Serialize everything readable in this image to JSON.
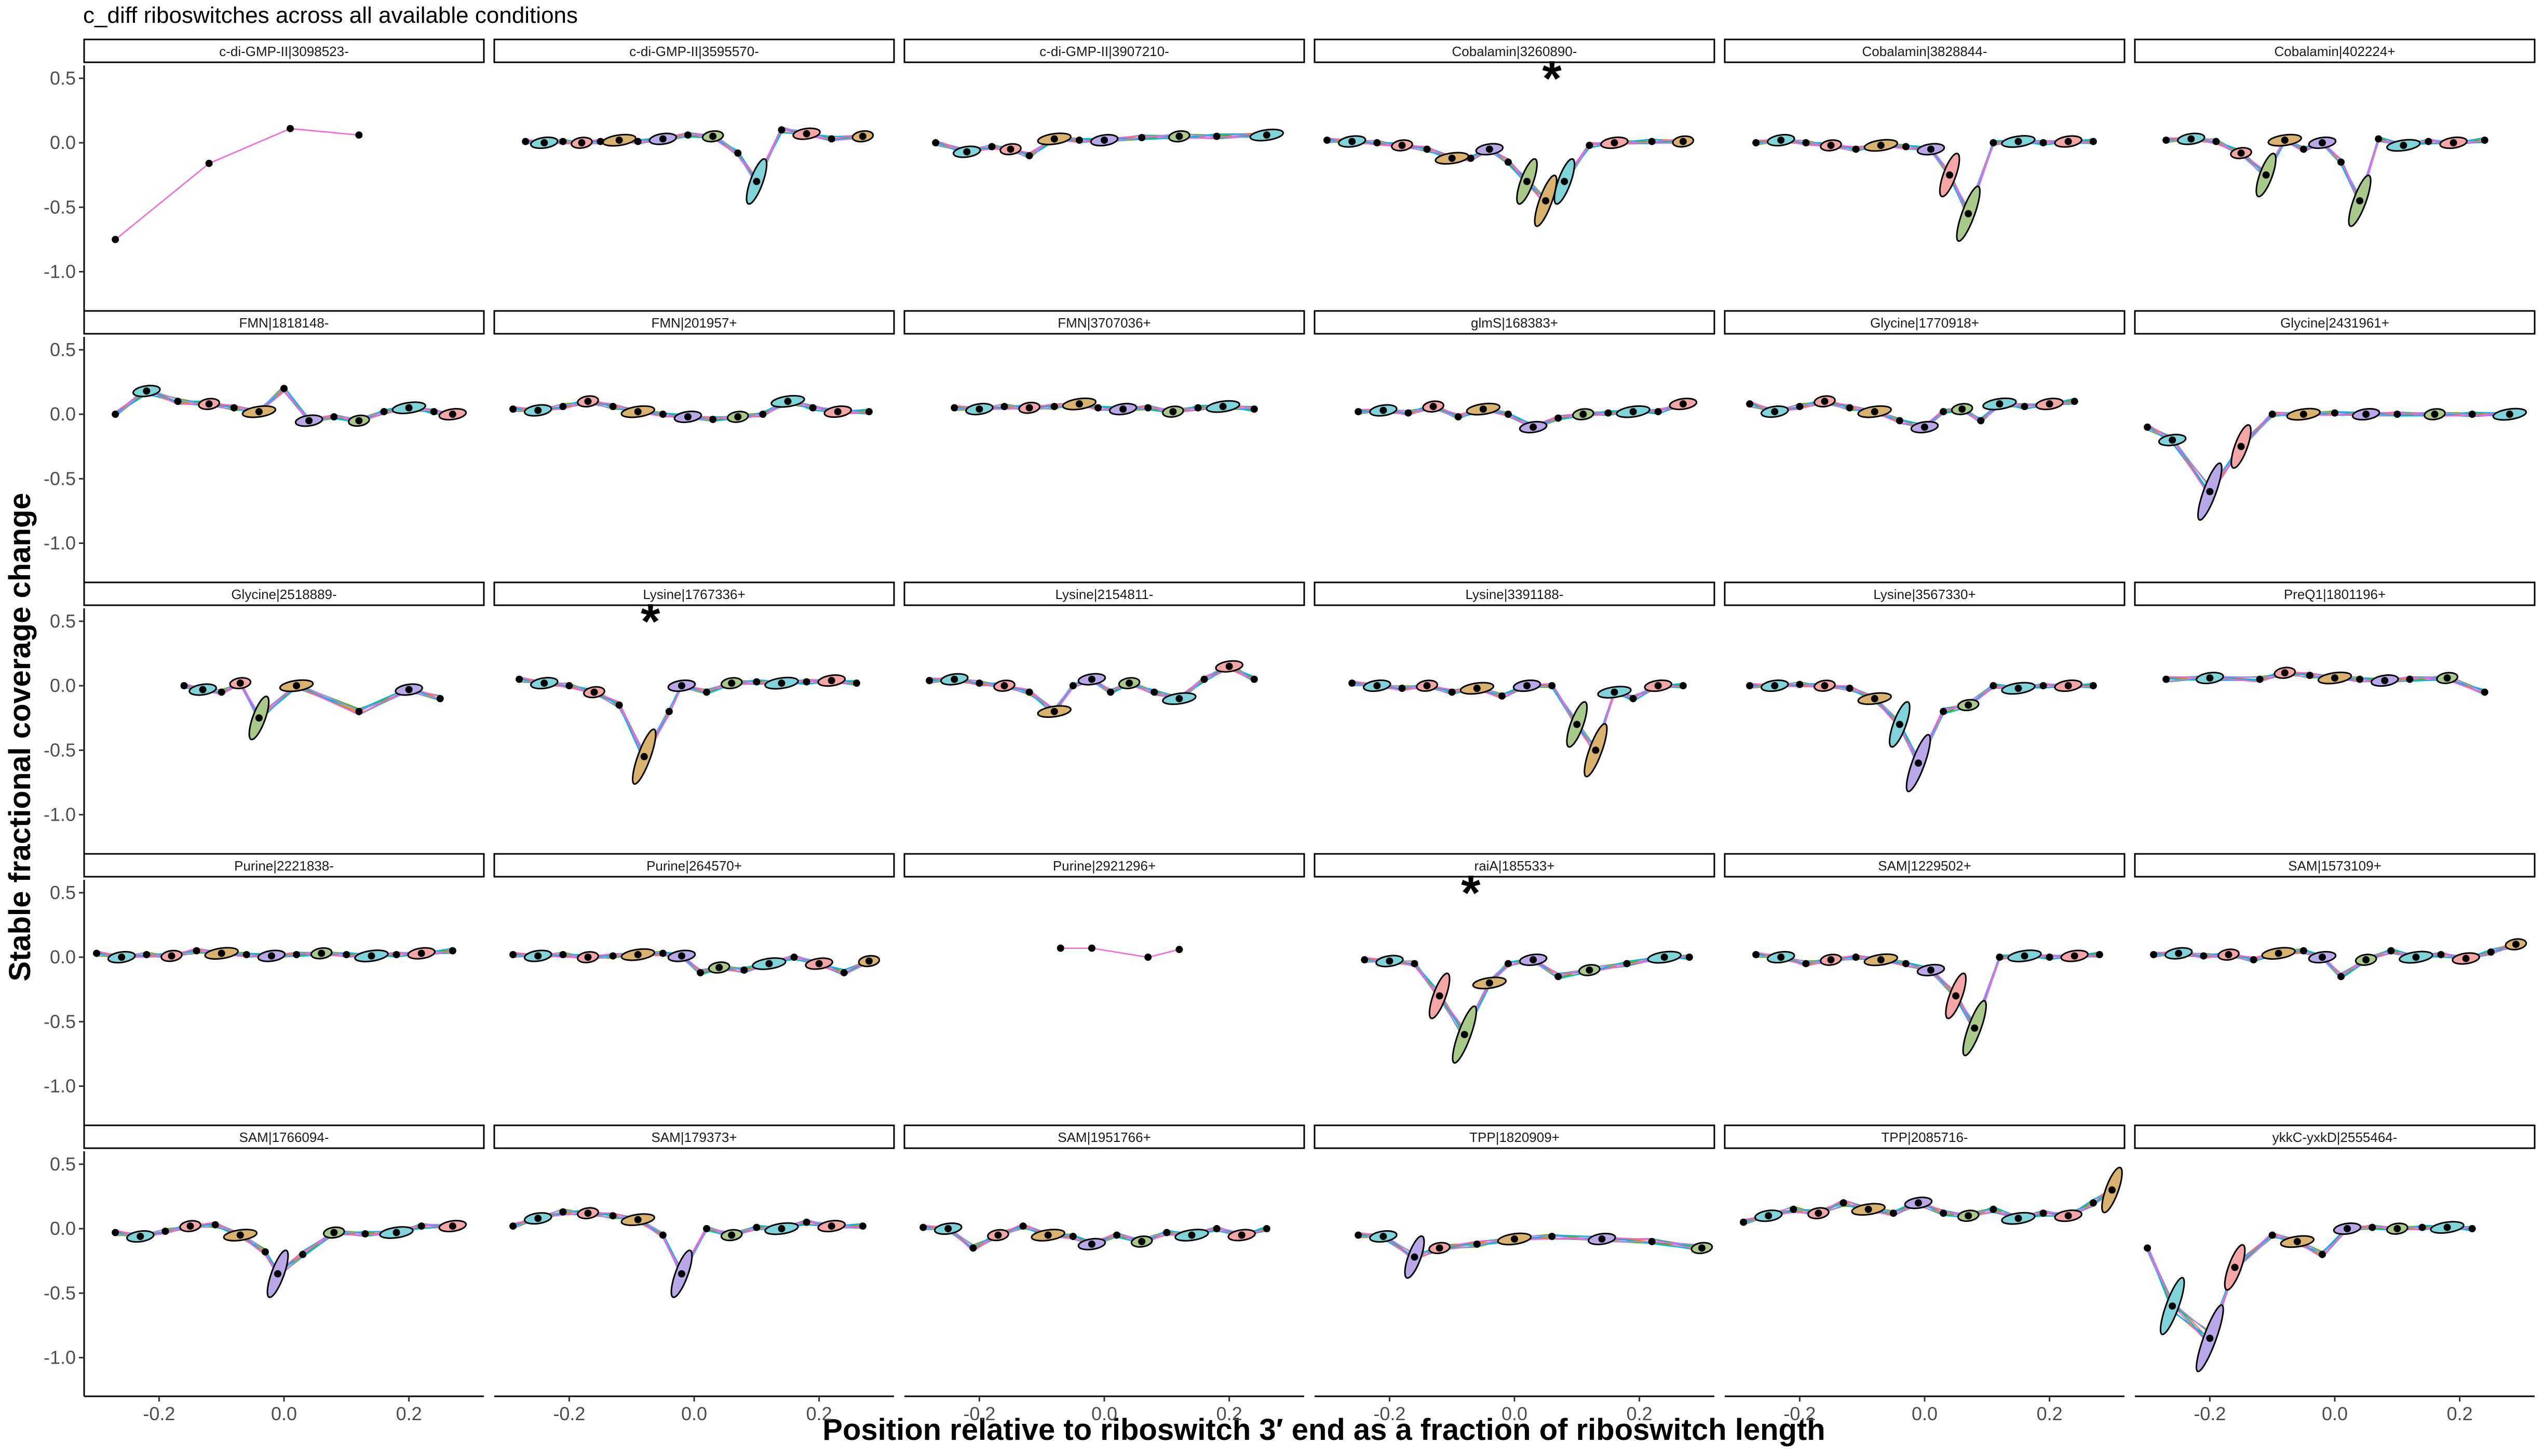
{
  "chart_data": {
    "type": "line",
    "title": "c_diff riboswitches across all available conditions",
    "xlabel": "Position relative to riboswitch 3′ end as a fraction of riboswitch length",
    "ylabel": "Stable fractional coverage change",
    "xlim": [
      -0.32,
      0.32
    ],
    "ylim": [
      -1.3,
      0.6
    ],
    "x_ticks": [
      "-0.2",
      "0.0",
      "0.2"
    ],
    "y_ticks": [
      "0.5",
      "0.0",
      "-0.5",
      "-1.0"
    ],
    "series_colors": [
      "#F8766D",
      "#C49A00",
      "#53B400",
      "#00C094",
      "#00B6EB",
      "#A58AFF",
      "#FB61D7"
    ],
    "ellipse_colors": [
      "#D9B26F",
      "#7FD3D9",
      "#B9A7E8",
      "#F4A6A6",
      "#A8C98A"
    ],
    "panels": [
      {
        "label": "c-di-GMP-II|3098523-",
        "star": "",
        "x": [
          -0.27,
          -0.12,
          0.01,
          0.12
        ],
        "y": [
          -0.75,
          -0.16,
          0.11,
          0.06
        ]
      },
      {
        "label": "c-di-GMP-II|3595570-",
        "star": "",
        "x": [
          -0.27,
          -0.24,
          -0.21,
          -0.18,
          -0.15,
          -0.12,
          -0.09,
          -0.05,
          -0.01,
          0.03,
          0.07,
          0.1,
          0.14,
          0.18,
          0.22,
          0.27
        ],
        "y": [
          0.01,
          0.0,
          0.01,
          0.0,
          0.01,
          0.02,
          0.01,
          0.03,
          0.06,
          0.05,
          -0.08,
          -0.3,
          0.1,
          0.07,
          0.03,
          0.05
        ]
      },
      {
        "label": "c-di-GMP-II|3907210-",
        "star": "",
        "x": [
          -0.27,
          -0.22,
          -0.18,
          -0.15,
          -0.12,
          -0.08,
          -0.04,
          0.0,
          0.06,
          0.12,
          0.18,
          0.26
        ],
        "y": [
          0.0,
          -0.07,
          -0.03,
          -0.05,
          -0.1,
          0.03,
          0.02,
          0.02,
          0.04,
          0.05,
          0.05,
          0.06
        ]
      },
      {
        "label": "Cobalamin|3260890-",
        "star": "*",
        "x": [
          -0.3,
          -0.26,
          -0.22,
          -0.18,
          -0.14,
          -0.1,
          -0.07,
          -0.04,
          -0.01,
          0.02,
          0.05,
          0.08,
          0.12,
          0.16,
          0.22,
          0.27
        ],
        "y": [
          0.02,
          0.01,
          0.0,
          -0.02,
          -0.05,
          -0.12,
          -0.12,
          -0.05,
          -0.15,
          -0.3,
          -0.45,
          -0.3,
          -0.02,
          0.0,
          0.01,
          0.01
        ]
      },
      {
        "label": "Cobalamin|3828844-",
        "star": "",
        "x": [
          -0.27,
          -0.23,
          -0.19,
          -0.15,
          -0.11,
          -0.07,
          -0.03,
          0.01,
          0.04,
          0.07,
          0.11,
          0.15,
          0.19,
          0.23,
          0.27
        ],
        "y": [
          0.0,
          0.02,
          0.0,
          -0.02,
          -0.05,
          -0.02,
          -0.03,
          -0.05,
          -0.25,
          -0.55,
          0.0,
          0.01,
          0.0,
          0.01,
          0.01
        ]
      },
      {
        "label": "Cobalamin|402224+",
        "star": "",
        "x": [
          -0.27,
          -0.23,
          -0.19,
          -0.15,
          -0.11,
          -0.08,
          -0.05,
          -0.02,
          0.01,
          0.04,
          0.07,
          0.11,
          0.15,
          0.19,
          0.24
        ],
        "y": [
          0.02,
          0.03,
          0.01,
          -0.08,
          -0.25,
          0.02,
          -0.05,
          0.0,
          -0.15,
          -0.45,
          0.03,
          -0.02,
          0.01,
          0.0,
          0.02
        ]
      },
      {
        "label": "FMN|1818148-",
        "star": "",
        "x": [
          -0.27,
          -0.22,
          -0.17,
          -0.12,
          -0.08,
          -0.04,
          0.0,
          0.04,
          0.08,
          0.12,
          0.16,
          0.2,
          0.24,
          0.27
        ],
        "y": [
          0.0,
          0.18,
          0.1,
          0.08,
          0.05,
          0.02,
          0.2,
          -0.05,
          -0.02,
          -0.05,
          0.02,
          0.05,
          0.02,
          0.0
        ]
      },
      {
        "label": "FMN|201957+",
        "star": "",
        "x": [
          -0.29,
          -0.25,
          -0.21,
          -0.17,
          -0.13,
          -0.09,
          -0.05,
          -0.01,
          0.03,
          0.07,
          0.11,
          0.15,
          0.19,
          0.23,
          0.28
        ],
        "y": [
          0.04,
          0.03,
          0.06,
          0.1,
          0.06,
          0.02,
          0.0,
          -0.02,
          -0.04,
          -0.02,
          0.0,
          0.1,
          0.05,
          0.02,
          0.02
        ]
      },
      {
        "label": "FMN|3707036+",
        "star": "",
        "x": [
          -0.24,
          -0.2,
          -0.16,
          -0.12,
          -0.08,
          -0.04,
          -0.01,
          0.03,
          0.07,
          0.11,
          0.15,
          0.19,
          0.24
        ],
        "y": [
          0.05,
          0.04,
          0.06,
          0.05,
          0.06,
          0.08,
          0.05,
          0.04,
          0.05,
          0.02,
          0.05,
          0.06,
          0.04
        ]
      },
      {
        "label": "glmS|168383+",
        "star": "",
        "x": [
          -0.25,
          -0.21,
          -0.17,
          -0.13,
          -0.09,
          -0.05,
          -0.01,
          0.03,
          0.07,
          0.11,
          0.15,
          0.19,
          0.23,
          0.27
        ],
        "y": [
          0.02,
          0.03,
          0.01,
          0.06,
          -0.02,
          0.04,
          0.0,
          -0.1,
          -0.03,
          0.0,
          0.01,
          0.02,
          0.02,
          0.08
        ]
      },
      {
        "label": "Glycine|1770918+",
        "star": "",
        "x": [
          -0.28,
          -0.24,
          -0.2,
          -0.16,
          -0.12,
          -0.08,
          -0.04,
          0.0,
          0.03,
          0.06,
          0.09,
          0.12,
          0.16,
          0.2,
          0.24
        ],
        "y": [
          0.08,
          0.02,
          0.06,
          0.1,
          0.05,
          0.02,
          -0.05,
          -0.1,
          0.02,
          0.04,
          -0.05,
          0.08,
          0.06,
          0.08,
          0.1
        ]
      },
      {
        "label": "Glycine|2431961+",
        "star": "",
        "x": [
          -0.3,
          -0.26,
          -0.2,
          -0.15,
          -0.1,
          -0.05,
          0.0,
          0.05,
          0.1,
          0.16,
          0.22,
          0.28
        ],
        "y": [
          -0.1,
          -0.2,
          -0.6,
          -0.25,
          0.0,
          0.0,
          0.01,
          0.0,
          0.0,
          0.0,
          0.0,
          0.0
        ]
      },
      {
        "label": "Glycine|2518889-",
        "star": "",
        "x": [
          -0.16,
          -0.13,
          -0.1,
          -0.07,
          -0.04,
          0.02,
          0.12,
          0.2,
          0.25
        ],
        "y": [
          0.0,
          -0.03,
          -0.05,
          0.02,
          -0.25,
          0.0,
          -0.2,
          -0.03,
          -0.1
        ]
      },
      {
        "label": "Lysine|1767336+",
        "star": "*",
        "x": [
          -0.28,
          -0.24,
          -0.2,
          -0.16,
          -0.12,
          -0.08,
          -0.04,
          -0.02,
          0.02,
          0.06,
          0.1,
          0.14,
          0.18,
          0.22,
          0.26
        ],
        "y": [
          0.05,
          0.02,
          0.0,
          -0.05,
          -0.15,
          -0.55,
          -0.2,
          0.0,
          -0.05,
          0.02,
          0.03,
          0.02,
          0.03,
          0.04,
          0.02
        ]
      },
      {
        "label": "Lysine|2154811-",
        "star": "",
        "x": [
          -0.28,
          -0.24,
          -0.2,
          -0.16,
          -0.12,
          -0.08,
          -0.05,
          -0.02,
          0.01,
          0.04,
          0.08,
          0.12,
          0.16,
          0.2,
          0.24
        ],
        "y": [
          0.04,
          0.05,
          0.02,
          0.0,
          -0.05,
          -0.2,
          0.0,
          0.05,
          -0.05,
          0.02,
          -0.05,
          -0.1,
          0.05,
          0.15,
          0.05
        ]
      },
      {
        "label": "Lysine|3391188-",
        "star": "",
        "x": [
          -0.26,
          -0.22,
          -0.18,
          -0.14,
          -0.1,
          -0.06,
          -0.02,
          0.02,
          0.06,
          0.1,
          0.13,
          0.16,
          0.19,
          0.23,
          0.27
        ],
        "y": [
          0.02,
          0.0,
          -0.02,
          0.0,
          -0.05,
          -0.02,
          -0.08,
          0.0,
          0.0,
          -0.3,
          -0.5,
          -0.05,
          -0.1,
          0.0,
          0.0
        ]
      },
      {
        "label": "Lysine|3567330+",
        "star": "",
        "x": [
          -0.28,
          -0.24,
          -0.2,
          -0.16,
          -0.12,
          -0.08,
          -0.04,
          -0.01,
          0.03,
          0.07,
          0.11,
          0.15,
          0.19,
          0.23,
          0.27
        ],
        "y": [
          0.0,
          0.0,
          0.01,
          0.0,
          -0.02,
          -0.1,
          -0.3,
          -0.6,
          -0.2,
          -0.15,
          0.0,
          -0.02,
          0.0,
          0.0,
          0.0
        ]
      },
      {
        "label": "PreQ1|1801196+",
        "star": "",
        "x": [
          -0.27,
          -0.2,
          -0.12,
          -0.08,
          -0.04,
          0.0,
          0.04,
          0.08,
          0.12,
          0.18,
          0.24
        ],
        "y": [
          0.05,
          0.06,
          0.05,
          0.1,
          0.08,
          0.06,
          0.05,
          0.04,
          0.05,
          0.06,
          -0.05
        ]
      },
      {
        "label": "Purine|2221838-",
        "star": "",
        "x": [
          -0.3,
          -0.26,
          -0.22,
          -0.18,
          -0.14,
          -0.1,
          -0.06,
          -0.02,
          0.02,
          0.06,
          0.1,
          0.14,
          0.18,
          0.22,
          0.27
        ],
        "y": [
          0.03,
          0.0,
          0.02,
          0.01,
          0.05,
          0.03,
          0.02,
          0.01,
          0.02,
          0.03,
          0.02,
          0.01,
          0.02,
          0.03,
          0.05
        ]
      },
      {
        "label": "Purine|264570+",
        "star": "",
        "x": [
          -0.29,
          -0.25,
          -0.21,
          -0.17,
          -0.13,
          -0.09,
          -0.05,
          -0.02,
          0.01,
          0.04,
          0.08,
          0.12,
          0.16,
          0.2,
          0.24,
          0.28
        ],
        "y": [
          0.02,
          0.01,
          0.02,
          0.0,
          0.01,
          0.02,
          0.03,
          0.01,
          -0.12,
          -0.08,
          -0.1,
          -0.05,
          0.0,
          -0.05,
          -0.12,
          -0.03
        ]
      },
      {
        "label": "Purine|2921296+",
        "star": "",
        "x": [
          -0.07,
          -0.02,
          0.07,
          0.12
        ],
        "y": [
          0.07,
          0.07,
          0.0,
          0.06
        ]
      },
      {
        "label": "raiA|185533+",
        "star": "*",
        "x": [
          -0.24,
          -0.2,
          -0.16,
          -0.12,
          -0.08,
          -0.04,
          -0.01,
          0.03,
          0.07,
          0.12,
          0.18,
          0.24,
          0.28
        ],
        "y": [
          -0.02,
          -0.03,
          -0.05,
          -0.3,
          -0.6,
          -0.2,
          -0.05,
          -0.02,
          -0.15,
          -0.1,
          -0.05,
          0.0,
          0.0
        ]
      },
      {
        "label": "SAM|1229502+",
        "star": "",
        "x": [
          -0.27,
          -0.23,
          -0.19,
          -0.15,
          -0.11,
          -0.07,
          -0.03,
          0.01,
          0.05,
          0.08,
          0.12,
          0.16,
          0.2,
          0.24,
          0.28
        ],
        "y": [
          0.02,
          0.0,
          -0.05,
          -0.02,
          0.0,
          -0.02,
          -0.05,
          -0.1,
          -0.3,
          -0.55,
          0.0,
          0.01,
          0.0,
          0.01,
          0.02
        ]
      },
      {
        "label": "SAM|1573109+",
        "star": "",
        "x": [
          -0.29,
          -0.25,
          -0.21,
          -0.17,
          -0.13,
          -0.09,
          -0.05,
          -0.02,
          0.01,
          0.05,
          0.09,
          0.13,
          0.17,
          0.21,
          0.25,
          0.29
        ],
        "y": [
          0.02,
          0.03,
          0.01,
          0.02,
          -0.02,
          0.03,
          0.05,
          0.0,
          -0.15,
          -0.02,
          0.05,
          0.0,
          0.02,
          -0.01,
          0.04,
          0.1
        ]
      },
      {
        "label": "SAM|1766094-",
        "star": "",
        "x": [
          -0.27,
          -0.23,
          -0.19,
          -0.15,
          -0.11,
          -0.07,
          -0.03,
          -0.01,
          0.03,
          0.08,
          0.13,
          0.18,
          0.22,
          0.27
        ],
        "y": [
          -0.03,
          -0.06,
          -0.02,
          0.02,
          0.03,
          -0.05,
          -0.18,
          -0.35,
          -0.2,
          -0.03,
          -0.04,
          -0.03,
          0.02,
          0.02
        ]
      },
      {
        "label": "SAM|179373+",
        "star": "",
        "x": [
          -0.29,
          -0.25,
          -0.21,
          -0.17,
          -0.13,
          -0.09,
          -0.05,
          -0.02,
          0.02,
          0.06,
          0.1,
          0.14,
          0.18,
          0.22,
          0.27
        ],
        "y": [
          0.02,
          0.08,
          0.13,
          0.12,
          0.1,
          0.07,
          -0.05,
          -0.35,
          0.0,
          -0.05,
          0.01,
          0.0,
          0.05,
          0.02,
          0.02
        ]
      },
      {
        "label": "SAM|1951766+",
        "star": "",
        "x": [
          -0.29,
          -0.25,
          -0.21,
          -0.17,
          -0.13,
          -0.09,
          -0.05,
          -0.02,
          0.02,
          0.06,
          0.1,
          0.14,
          0.18,
          0.22,
          0.26
        ],
        "y": [
          0.01,
          0.0,
          -0.15,
          -0.05,
          0.02,
          -0.05,
          -0.06,
          -0.12,
          -0.05,
          -0.1,
          -0.03,
          -0.05,
          0.0,
          -0.05,
          0.0
        ]
      },
      {
        "label": "TPP|1820909+",
        "star": "",
        "x": [
          -0.25,
          -0.21,
          -0.16,
          -0.12,
          -0.06,
          0.0,
          0.06,
          0.14,
          0.22,
          0.3
        ],
        "y": [
          -0.05,
          -0.06,
          -0.22,
          -0.15,
          -0.12,
          -0.08,
          -0.06,
          -0.08,
          -0.1,
          -0.15
        ]
      },
      {
        "label": "TPP|2085716-",
        "star": "",
        "x": [
          -0.29,
          -0.25,
          -0.21,
          -0.17,
          -0.13,
          -0.09,
          -0.05,
          -0.01,
          0.03,
          0.07,
          0.11,
          0.15,
          0.19,
          0.23,
          0.27,
          0.3
        ],
        "y": [
          0.05,
          0.1,
          0.15,
          0.12,
          0.2,
          0.15,
          0.12,
          0.2,
          0.12,
          0.1,
          0.15,
          0.08,
          0.12,
          0.1,
          0.2,
          0.3
        ]
      },
      {
        "label": "ykkC-yxkD|2555464-",
        "star": "",
        "x": [
          -0.3,
          -0.26,
          -0.2,
          -0.16,
          -0.1,
          -0.06,
          -0.02,
          0.02,
          0.06,
          0.1,
          0.14,
          0.18,
          0.22
        ],
        "y": [
          -0.15,
          -0.6,
          -0.85,
          -0.3,
          -0.05,
          -0.1,
          -0.2,
          0.0,
          0.01,
          0.0,
          0.01,
          0.01,
          0.0
        ]
      }
    ]
  }
}
